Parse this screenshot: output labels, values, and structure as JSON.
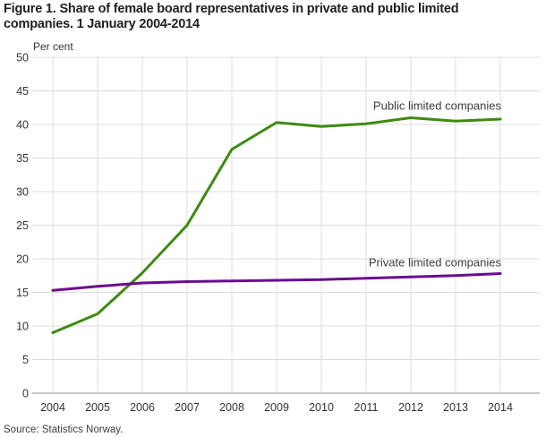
{
  "header": {
    "title_line1": "Figure 1. Share of female board representatives in private and public limited",
    "title_line2": "companies. 1 January 2004-2014"
  },
  "footer": {
    "source": "Source: Statistics Norway."
  },
  "chart_data": {
    "type": "line",
    "title": "Figure 1. Share of female board representatives in private and public limited companies. 1 January 2004-2014",
    "ylabel": "Per cent",
    "xlabel": "",
    "x": [
      2004,
      2005,
      2006,
      2007,
      2008,
      2009,
      2010,
      2011,
      2012,
      2013,
      2014
    ],
    "xticks": [
      2004,
      2005,
      2006,
      2007,
      2008,
      2009,
      2010,
      2011,
      2012,
      2013,
      2014
    ],
    "yticks": [
      0,
      5,
      10,
      15,
      20,
      25,
      30,
      35,
      40,
      45,
      50
    ],
    "ylim": [
      0,
      50
    ],
    "grid": true,
    "legend_position": "inline-labels",
    "series": [
      {
        "name": "Public limited companies",
        "color": "#3e8a12",
        "values": [
          9.0,
          11.8,
          17.9,
          25.0,
          36.3,
          40.3,
          39.7,
          40.1,
          41.0,
          40.5,
          40.8
        ],
        "label_x": 2014,
        "label_y": 42.2
      },
      {
        "name": "Private limited companies",
        "color": "#6b0c90",
        "values": [
          15.3,
          15.9,
          16.4,
          16.6,
          16.7,
          16.8,
          16.9,
          17.1,
          17.3,
          17.5,
          17.8
        ],
        "label_x": 2014,
        "label_y": 18.9
      }
    ],
    "colors": {
      "gridline": "#dcdcdc",
      "axis_line": "#b8b8b8",
      "tick_label": "#333333",
      "annotation": "#3d3d3d"
    }
  }
}
